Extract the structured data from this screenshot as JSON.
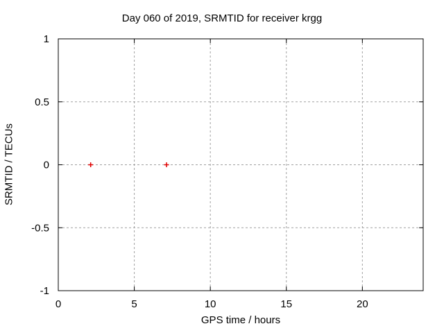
{
  "chart_data": {
    "type": "scatter",
    "title": "Day 060 of 2019, SRMTID for receiver krgg",
    "xlabel": "GPS time / hours",
    "ylabel": "SRMTID / TECUs",
    "xlim": [
      0,
      24
    ],
    "ylim": [
      -1,
      1
    ],
    "x_ticks": [
      0,
      5,
      10,
      15,
      20
    ],
    "y_ticks": [
      -1,
      -0.5,
      0,
      0.5,
      1
    ],
    "grid": true,
    "legend": false,
    "series": [
      {
        "name": "SRMTID",
        "marker": "plus",
        "color": "#e00000",
        "points": [
          {
            "x": 2.13,
            "y": 0
          },
          {
            "x": 7.12,
            "y": 0
          }
        ]
      }
    ],
    "colors": {
      "background": "#ffffff",
      "axis": "#000000",
      "grid": "#a0a0a0",
      "text": "#000000"
    }
  }
}
